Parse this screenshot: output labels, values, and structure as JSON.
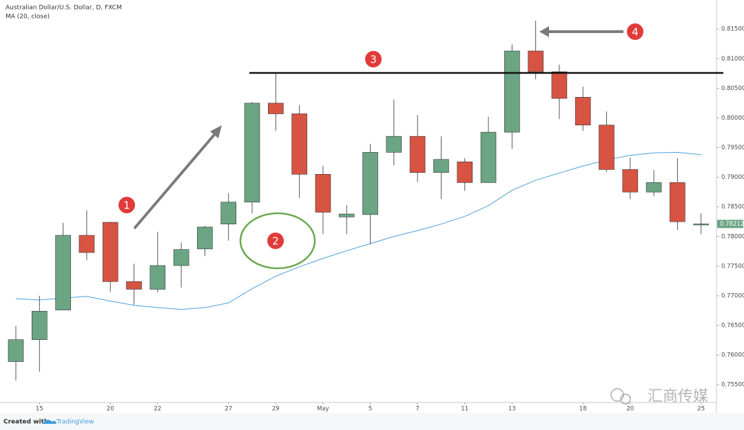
{
  "chart_data": {
    "type": "candlestick",
    "title": "Australian Dollar/U.S. Dollar, D, FXCM",
    "subtitle": "MA (20, close)",
    "categories": [
      null,
      "15",
      null,
      null,
      "20",
      null,
      "22",
      null,
      null,
      "27",
      null,
      "29",
      null,
      "May",
      null,
      "5",
      null,
      "7",
      null,
      "11",
      null,
      "13",
      null,
      null,
      "18",
      null,
      "20",
      null,
      null,
      "25"
    ],
    "open": [
      0.7589,
      0.7626,
      0.7676,
      0.7802,
      0.7824,
      0.7724,
      0.7711,
      0.7751,
      0.7779,
      0.7821,
      0.7858,
      0.8025,
      0.8007,
      0.7905,
      0.7833,
      0.7837,
      0.7942,
      0.7969,
      0.7908,
      0.7926,
      0.7891,
      0.7976,
      0.8113,
      0.8078,
      0.8035,
      0.7988,
      0.7913,
      0.7875,
      0.7891,
      0.782
    ],
    "high": [
      0.7649,
      0.77,
      0.7823,
      0.7844,
      0.7825,
      0.7754,
      0.7808,
      0.779,
      0.7818,
      0.7873,
      0.8027,
      0.8075,
      0.8022,
      0.7919,
      0.7853,
      0.7956,
      0.8031,
      0.8005,
      0.7969,
      0.7932,
      0.8002,
      0.8124,
      0.8164,
      0.809,
      0.8053,
      0.8011,
      0.7933,
      0.7912,
      0.7932,
      0.7839
    ],
    "low": [
      0.7557,
      0.7572,
      0.7676,
      0.776,
      0.7707,
      0.7685,
      0.7706,
      0.7714,
      0.7767,
      0.7793,
      0.7839,
      0.7978,
      0.7865,
      0.7804,
      0.7804,
      0.7787,
      0.792,
      0.7892,
      0.7863,
      0.7877,
      0.7891,
      0.7948,
      0.8065,
      0.7998,
      0.7978,
      0.7909,
      0.7863,
      0.7868,
      0.7811,
      0.7804
    ],
    "close": [
      0.7626,
      0.7674,
      0.7802,
      0.7773,
      0.7724,
      0.7711,
      0.7751,
      0.7778,
      0.7816,
      0.7858,
      0.8025,
      0.8007,
      0.7905,
      0.7841,
      0.7838,
      0.7942,
      0.7969,
      0.7908,
      0.793,
      0.7891,
      0.7976,
      0.8113,
      0.8078,
      0.8033,
      0.7988,
      0.7913,
      0.7875,
      0.7891,
      0.7825,
      0.78212
    ],
    "up_color": "#6ba583",
    "down_color": "#d75442",
    "ma": {
      "name": "MA (20, close)",
      "color": "#4a9fd8",
      "values": [
        0.7695,
        0.7693,
        0.7696,
        0.7699,
        0.7691,
        0.7684,
        0.768,
        0.7677,
        0.768,
        0.7688,
        0.7712,
        0.7733,
        0.7749,
        0.7763,
        0.7776,
        0.7788,
        0.78,
        0.781,
        0.7821,
        0.7834,
        0.7852,
        0.7878,
        0.7895,
        0.7907,
        0.7919,
        0.7929,
        0.7937,
        0.7941,
        0.7942,
        0.7938
      ]
    },
    "resistance": 0.8076,
    "ylim": [
      0.752,
      0.8199
    ],
    "yticks": [
      {
        "value": 0.755,
        "label": "0.75500"
      },
      {
        "value": 0.76,
        "label": "0.76000"
      },
      {
        "value": 0.765,
        "label": "0.76500"
      },
      {
        "value": 0.77,
        "label": "0.77000"
      },
      {
        "value": 0.775,
        "label": "0.77500"
      },
      {
        "value": 0.78,
        "label": "0.78000"
      },
      {
        "value": 0.785,
        "label": "0.78500"
      },
      {
        "value": 0.79,
        "label": "0.79000"
      },
      {
        "value": 0.795,
        "label": "0.79500"
      },
      {
        "value": 0.8,
        "label": "0.80000"
      },
      {
        "value": 0.805,
        "label": "0.80500"
      },
      {
        "value": 0.81,
        "label": "0.81000"
      },
      {
        "value": 0.815,
        "label": "0.81500"
      }
    ],
    "annotations": [
      "1",
      "2",
      "3",
      "4"
    ]
  },
  "footer": {
    "created": "Created with",
    "brand": "TradingView"
  },
  "watermark": "汇商传媒"
}
